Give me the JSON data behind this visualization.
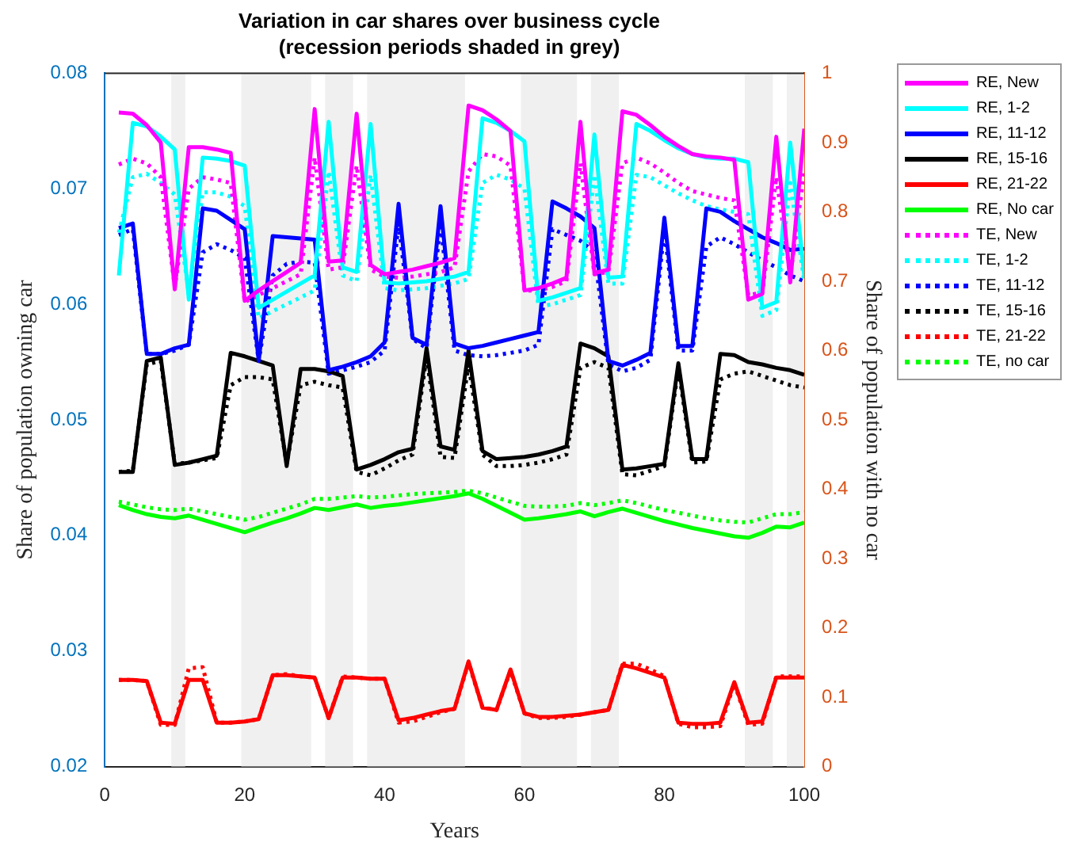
{
  "chart_data": {
    "type": "line",
    "title": "Variation in car shares over business cycle",
    "subtitle": "(recession periods shaded in grey)",
    "xlabel": "Years",
    "ylabel": "Share of population owning car",
    "y2label": "Share of population with no car",
    "x": [
      2,
      4,
      6,
      8,
      10,
      12,
      14,
      16,
      18,
      20,
      22,
      24,
      26,
      28,
      30,
      32,
      34,
      36,
      38,
      40,
      42,
      44,
      46,
      48,
      50,
      52,
      54,
      56,
      58,
      60,
      62,
      64,
      66,
      68,
      70,
      72,
      74,
      76,
      78,
      80,
      82,
      84,
      86,
      88,
      90,
      92,
      94,
      96,
      98,
      100
    ],
    "xlim": [
      0,
      100
    ],
    "xticks": [
      0,
      20,
      40,
      60,
      80,
      100
    ],
    "ylim": [
      0.02,
      0.08
    ],
    "yticks": [
      0.02,
      0.03,
      0.04,
      0.05,
      0.06,
      0.07,
      0.08
    ],
    "y2lim": [
      0,
      1
    ],
    "y2ticks": [
      0,
      0.1,
      0.2,
      0.3,
      0.4,
      0.5,
      0.6,
      0.7,
      0.8,
      0.9,
      1
    ],
    "grid": false,
    "legend": "top right",
    "bands": [
      {
        "axis": "x",
        "from": 9.5,
        "to": 11.5,
        "color": "#f0f0f0"
      },
      {
        "axis": "x",
        "from": 19.5,
        "to": 29.5,
        "color": "#f0f0f0"
      },
      {
        "axis": "x",
        "from": 31.5,
        "to": 35.5,
        "color": "#f0f0f0"
      },
      {
        "axis": "x",
        "from": 37.5,
        "to": 51.5,
        "color": "#f0f0f0"
      },
      {
        "axis": "x",
        "from": 59.5,
        "to": 67.5,
        "color": "#f0f0f0"
      },
      {
        "axis": "x",
        "from": 69.5,
        "to": 73.5,
        "color": "#f0f0f0"
      },
      {
        "axis": "x",
        "from": 91.5,
        "to": 95.5,
        "color": "#f0f0f0"
      },
      {
        "axis": "x",
        "from": 97.5,
        "to": 100,
        "color": "#f0f0f0"
      }
    ],
    "series": [
      {
        "name": "RE, New",
        "color": "#ff00ff",
        "line_style": "solid",
        "values": [
          0.0766,
          0.0765,
          0.0755,
          0.074,
          0.0613,
          0.0736,
          0.0736,
          0.0734,
          0.0731,
          0.0603,
          0.0612,
          0.062,
          0.0628,
          0.0636,
          0.0769,
          0.0637,
          0.0638,
          0.0765,
          0.0634,
          0.0626,
          0.0628,
          0.063,
          0.0633,
          0.0636,
          0.064,
          0.0772,
          0.0768,
          0.076,
          0.075,
          0.0612,
          0.0614,
          0.0618,
          0.0623,
          0.0758,
          0.0627,
          0.063,
          0.0767,
          0.0764,
          0.0755,
          0.0745,
          0.0737,
          0.073,
          0.0728,
          0.0727,
          0.0725,
          0.0604,
          0.0609,
          0.0745,
          0.0619,
          0.0752
        ]
      },
      {
        "name": "RE, 1-2",
        "color": "#00ffff",
        "line_style": "solid",
        "values": [
          0.0625,
          0.0757,
          0.0754,
          0.0745,
          0.0734,
          0.0604,
          0.0727,
          0.0726,
          0.0724,
          0.072,
          0.0597,
          0.0604,
          0.0611,
          0.0618,
          0.0625,
          0.0758,
          0.0632,
          0.0628,
          0.0756,
          0.0619,
          0.0618,
          0.0619,
          0.062,
          0.0622,
          0.0624,
          0.0628,
          0.0761,
          0.0757,
          0.075,
          0.0741,
          0.0603,
          0.0606,
          0.061,
          0.0614,
          0.0747,
          0.0623,
          0.0624,
          0.0756,
          0.075,
          0.0742,
          0.0735,
          0.073,
          0.0727,
          0.0726,
          0.0726,
          0.0723,
          0.0597,
          0.0602,
          0.074,
          0.0625
        ]
      },
      {
        "name": "RE, 11-12",
        "color": "#0000ff",
        "line_style": "solid",
        "values": [
          0.0666,
          0.067,
          0.0557,
          0.0557,
          0.0562,
          0.0565,
          0.0683,
          0.0681,
          0.0673,
          0.0665,
          0.0551,
          0.0659,
          0.0658,
          0.0657,
          0.0656,
          0.0543,
          0.0546,
          0.055,
          0.0555,
          0.0567,
          0.0687,
          0.0571,
          0.0565,
          0.0685,
          0.0566,
          0.0562,
          0.0564,
          0.0567,
          0.057,
          0.0573,
          0.0576,
          0.0689,
          0.0683,
          0.0676,
          0.0666,
          0.0551,
          0.0547,
          0.0552,
          0.0558,
          0.0675,
          0.0564,
          0.0564,
          0.0683,
          0.068,
          0.0672,
          0.0665,
          0.0658,
          0.0653,
          0.0647,
          0.0648
        ]
      },
      {
        "name": "RE, 15-16",
        "color": "#000000",
        "line_style": "solid",
        "values": [
          0.0455,
          0.0455,
          0.0551,
          0.0554,
          0.0461,
          0.0463,
          0.0466,
          0.0469,
          0.0558,
          0.0555,
          0.0551,
          0.0547,
          0.046,
          0.0544,
          0.0544,
          0.0542,
          0.0538,
          0.0457,
          0.0461,
          0.0466,
          0.0472,
          0.0475,
          0.0562,
          0.0477,
          0.0474,
          0.056,
          0.0473,
          0.0466,
          0.0467,
          0.0468,
          0.047,
          0.0473,
          0.0477,
          0.0566,
          0.0562,
          0.0555,
          0.0457,
          0.0458,
          0.046,
          0.0462,
          0.0549,
          0.0466,
          0.0466,
          0.0557,
          0.0556,
          0.055,
          0.0548,
          0.0545,
          0.0543,
          0.0539
        ]
      },
      {
        "name": "RE, 21-22",
        "color": "#ff0000",
        "line_style": "solid",
        "values": [
          0.0275,
          0.0275,
          0.0274,
          0.0238,
          0.0237,
          0.0275,
          0.0275,
          0.0238,
          0.0238,
          0.0239,
          0.0241,
          0.0279,
          0.0279,
          0.0278,
          0.0277,
          0.0242,
          0.0277,
          0.0277,
          0.0276,
          0.0276,
          0.024,
          0.0242,
          0.0245,
          0.0248,
          0.025,
          0.0291,
          0.0251,
          0.0249,
          0.0284,
          0.0246,
          0.0243,
          0.0243,
          0.0244,
          0.0245,
          0.0247,
          0.0249,
          0.0288,
          0.0285,
          0.0281,
          0.0277,
          0.0238,
          0.0237,
          0.0237,
          0.0238,
          0.0273,
          0.0238,
          0.0239,
          0.0277,
          0.0277,
          0.0277
        ]
      },
      {
        "name": "RE, No car",
        "color": "#00ff00",
        "line_style": "solid",
        "axis": "y2",
        "values": [
          0.377,
          0.37,
          0.364,
          0.36,
          0.358,
          0.362,
          0.356,
          0.35,
          0.344,
          0.338,
          0.345,
          0.352,
          0.358,
          0.365,
          0.373,
          0.37,
          0.374,
          0.378,
          0.373,
          0.376,
          0.378,
          0.381,
          0.384,
          0.387,
          0.39,
          0.394,
          0.386,
          0.376,
          0.366,
          0.356,
          0.358,
          0.361,
          0.364,
          0.368,
          0.361,
          0.367,
          0.372,
          0.366,
          0.36,
          0.354,
          0.349,
          0.344,
          0.34,
          0.336,
          0.332,
          0.33,
          0.337,
          0.346,
          0.345,
          0.352
        ]
      },
      {
        "name": "TE, New",
        "color": "#ff00ff",
        "line_style": "dotted",
        "values": [
          0.0721,
          0.0726,
          0.0722,
          0.071,
          0.0615,
          0.07,
          0.071,
          0.0708,
          0.0705,
          0.0602,
          0.0608,
          0.0614,
          0.062,
          0.0626,
          0.0727,
          0.063,
          0.0632,
          0.072,
          0.063,
          0.0624,
          0.0623,
          0.0624,
          0.0626,
          0.0628,
          0.0632,
          0.0715,
          0.073,
          0.0728,
          0.072,
          0.0612,
          0.0612,
          0.0615,
          0.062,
          0.0722,
          0.0626,
          0.0628,
          0.0722,
          0.0727,
          0.0722,
          0.0714,
          0.0705,
          0.0698,
          0.0695,
          0.0692,
          0.069,
          0.0608,
          0.061,
          0.071,
          0.0625,
          0.0715
        ]
      },
      {
        "name": "TE, 1-2",
        "color": "#00ffff",
        "line_style": "dotted",
        "values": [
          0.0662,
          0.071,
          0.0713,
          0.0705,
          0.0695,
          0.061,
          0.0697,
          0.0697,
          0.0693,
          0.0685,
          0.0588,
          0.0594,
          0.06,
          0.0606,
          0.0612,
          0.0715,
          0.0625,
          0.062,
          0.0712,
          0.0614,
          0.0612,
          0.0613,
          0.0614,
          0.0616,
          0.0618,
          0.0622,
          0.0705,
          0.0712,
          0.0708,
          0.07,
          0.0598,
          0.06,
          0.0604,
          0.0608,
          0.0712,
          0.0618,
          0.0618,
          0.0712,
          0.071,
          0.0703,
          0.0696,
          0.069,
          0.0685,
          0.0682,
          0.068,
          0.0678,
          0.059,
          0.0595,
          0.0705,
          0.062
        ]
      },
      {
        "name": "TE, 11-12",
        "color": "#0000ff",
        "line_style": "dotted",
        "values": [
          0.066,
          0.0665,
          0.0557,
          0.0557,
          0.056,
          0.0565,
          0.0645,
          0.0652,
          0.0647,
          0.064,
          0.0551,
          0.0625,
          0.0635,
          0.0637,
          0.0636,
          0.054,
          0.0543,
          0.0546,
          0.055,
          0.056,
          0.067,
          0.057,
          0.0562,
          0.067,
          0.056,
          0.0556,
          0.0555,
          0.0556,
          0.0558,
          0.056,
          0.0565,
          0.0665,
          0.066,
          0.0655,
          0.0645,
          0.0548,
          0.0542,
          0.0545,
          0.0552,
          0.0665,
          0.056,
          0.056,
          0.065,
          0.0658,
          0.0652,
          0.0645,
          0.0638,
          0.0632,
          0.0625,
          0.062
        ]
      },
      {
        "name": "TE, 15-16",
        "color": "#000000",
        "line_style": "dotted",
        "values": [
          0.0455,
          0.0456,
          0.0548,
          0.0551,
          0.0462,
          0.0463,
          0.0465,
          0.0467,
          0.053,
          0.0537,
          0.0537,
          0.0535,
          0.0462,
          0.053,
          0.0533,
          0.053,
          0.0528,
          0.0455,
          0.0452,
          0.0458,
          0.0465,
          0.047,
          0.0555,
          0.0468,
          0.0467,
          0.0548,
          0.047,
          0.046,
          0.046,
          0.0461,
          0.0463,
          0.0466,
          0.047,
          0.0545,
          0.055,
          0.0545,
          0.0453,
          0.0452,
          0.0456,
          0.046,
          0.0545,
          0.0463,
          0.0464,
          0.0535,
          0.054,
          0.0542,
          0.0538,
          0.0534,
          0.053,
          0.0528
        ]
      },
      {
        "name": "TE, 21-22",
        "color": "#ff0000",
        "line_style": "dotted",
        "values": [
          0.0275,
          0.0275,
          0.0274,
          0.0236,
          0.0236,
          0.0285,
          0.0286,
          0.0238,
          0.0238,
          0.0239,
          0.0241,
          0.0279,
          0.028,
          0.0278,
          0.0277,
          0.0242,
          0.0278,
          0.0277,
          0.0276,
          0.0276,
          0.0238,
          0.0239,
          0.0243,
          0.0247,
          0.025,
          0.029,
          0.0251,
          0.0249,
          0.0283,
          0.0246,
          0.0242,
          0.0242,
          0.0243,
          0.0245,
          0.0247,
          0.0249,
          0.0289,
          0.0289,
          0.0284,
          0.0278,
          0.0237,
          0.0234,
          0.0234,
          0.0235,
          0.0272,
          0.0236,
          0.0237,
          0.0278,
          0.0278,
          0.0278
        ]
      },
      {
        "name": "TE, no car",
        "color": "#00ff00",
        "line_style": "dotted",
        "axis": "y2",
        "values": [
          0.382,
          0.378,
          0.374,
          0.371,
          0.37,
          0.372,
          0.368,
          0.364,
          0.36,
          0.356,
          0.36,
          0.366,
          0.372,
          0.378,
          0.386,
          0.386,
          0.388,
          0.39,
          0.388,
          0.389,
          0.391,
          0.393,
          0.394,
          0.395,
          0.396,
          0.398,
          0.394,
          0.388,
          0.382,
          0.376,
          0.375,
          0.375,
          0.376,
          0.38,
          0.377,
          0.38,
          0.384,
          0.38,
          0.375,
          0.37,
          0.366,
          0.362,
          0.358,
          0.355,
          0.353,
          0.352,
          0.358,
          0.364,
          0.364,
          0.367
        ]
      }
    ]
  }
}
